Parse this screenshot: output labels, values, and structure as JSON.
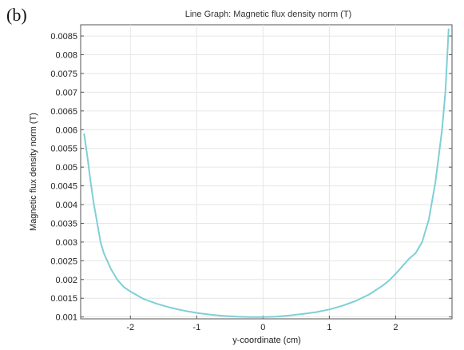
{
  "figure": {
    "panel_label": "(b)"
  },
  "chart_data": {
    "type": "line",
    "title": "Line Graph: Magnetic flux density norm (T)",
    "xlabel": "y-coordinate (cm)",
    "ylabel": "Magnetic flux density norm (T)",
    "xlim": [
      -2.75,
      2.85
    ],
    "ylim": [
      0.00095,
      0.0088
    ],
    "grid": true,
    "x_ticks": [
      -2,
      -1,
      0,
      1,
      2
    ],
    "x_tick_labels": [
      "-2",
      "-1",
      "0",
      "1",
      "2"
    ],
    "y_ticks": [
      0.001,
      0.0015,
      0.002,
      0.0025,
      0.003,
      0.0035,
      0.004,
      0.0045,
      0.005,
      0.0055,
      0.006,
      0.0065,
      0.007,
      0.0075,
      0.008,
      0.0085
    ],
    "y_tick_labels": [
      "0.001",
      "0.0015",
      "0.002",
      "0.0025",
      "0.003",
      "0.0035",
      "0.004",
      "0.0045",
      "0.005",
      "0.0055",
      "0.006",
      "0.0065",
      "0.007",
      "0.0075",
      "0.008",
      "0.0085"
    ],
    "series": [
      {
        "color": "#7fcfd6",
        "x": [
          -2.7,
          -2.65,
          -2.6,
          -2.55,
          -2.5,
          -2.45,
          -2.4,
          -2.3,
          -2.2,
          -2.1,
          -2.0,
          -1.9,
          -1.8,
          -1.6,
          -1.4,
          -1.2,
          -1.0,
          -0.8,
          -0.6,
          -0.4,
          -0.2,
          0.0,
          0.2,
          0.4,
          0.6,
          0.8,
          1.0,
          1.2,
          1.4,
          1.6,
          1.8,
          1.9,
          2.0,
          2.1,
          2.2,
          2.3,
          2.4,
          2.5,
          2.55,
          2.6,
          2.65,
          2.7,
          2.75,
          2.8
        ],
        "y": [
          0.0059,
          0.0053,
          0.0046,
          0.004,
          0.0035,
          0.003,
          0.0027,
          0.0023,
          0.002,
          0.0018,
          0.00168,
          0.00158,
          0.00148,
          0.00135,
          0.00125,
          0.00117,
          0.00111,
          0.00106,
          0.00103,
          0.00101,
          0.001,
          0.001,
          0.00101,
          0.00104,
          0.00108,
          0.00113,
          0.0012,
          0.0013,
          0.00143,
          0.0016,
          0.00183,
          0.00197,
          0.00215,
          0.00235,
          0.00255,
          0.0027,
          0.003,
          0.0036,
          0.0041,
          0.0046,
          0.0053,
          0.006,
          0.007,
          0.0087
        ]
      }
    ]
  }
}
